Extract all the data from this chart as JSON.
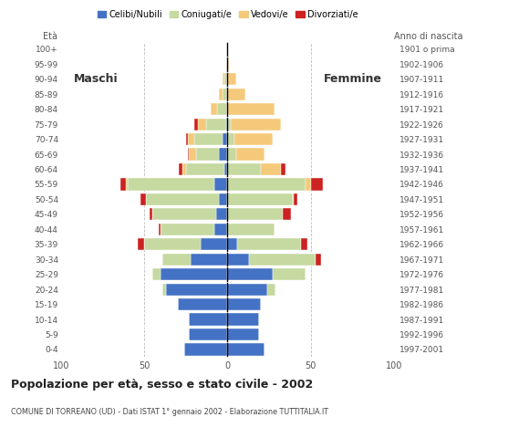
{
  "age_groups": [
    "0-4",
    "5-9",
    "10-14",
    "15-19",
    "20-24",
    "25-29",
    "30-34",
    "35-39",
    "40-44",
    "45-49",
    "50-54",
    "55-59",
    "60-64",
    "65-69",
    "70-74",
    "75-79",
    "80-84",
    "85-89",
    "90-94",
    "95-99",
    "100+"
  ],
  "birth_years": [
    "1997-2001",
    "1992-1996",
    "1987-1991",
    "1982-1986",
    "1977-1981",
    "1972-1976",
    "1967-1971",
    "1962-1966",
    "1957-1961",
    "1952-1956",
    "1947-1951",
    "1942-1946",
    "1937-1941",
    "1932-1936",
    "1927-1931",
    "1922-1926",
    "1917-1921",
    "1912-1916",
    "1907-1911",
    "1902-1906",
    "1901 o prima"
  ],
  "male_celibi": [
    26,
    23,
    23,
    30,
    37,
    40,
    22,
    16,
    8,
    7,
    5,
    8,
    2,
    5,
    3,
    1,
    0,
    0,
    0,
    0,
    0
  ],
  "male_coniugati": [
    0,
    0,
    0,
    0,
    2,
    5,
    17,
    34,
    32,
    38,
    44,
    52,
    23,
    14,
    17,
    12,
    6,
    3,
    2,
    0,
    0
  ],
  "male_vedovi": [
    0,
    0,
    0,
    0,
    0,
    0,
    0,
    0,
    0,
    0,
    0,
    1,
    2,
    4,
    4,
    5,
    4,
    2,
    1,
    0,
    0
  ],
  "male_divorziati": [
    0,
    0,
    0,
    0,
    0,
    0,
    0,
    4,
    1,
    2,
    3,
    3,
    2,
    1,
    1,
    2,
    0,
    0,
    0,
    0,
    0
  ],
  "female_nubili": [
    22,
    19,
    19,
    20,
    24,
    27,
    13,
    6,
    0,
    0,
    0,
    0,
    0,
    0,
    0,
    0,
    0,
    0,
    0,
    0,
    0
  ],
  "female_coniugate": [
    0,
    0,
    0,
    0,
    5,
    20,
    40,
    38,
    28,
    33,
    39,
    47,
    20,
    5,
    4,
    2,
    0,
    0,
    0,
    0,
    0
  ],
  "female_vedove": [
    0,
    0,
    0,
    0,
    0,
    0,
    0,
    0,
    0,
    0,
    1,
    3,
    12,
    17,
    23,
    30,
    28,
    11,
    5,
    1,
    0
  ],
  "female_divorziate": [
    0,
    0,
    0,
    0,
    0,
    0,
    3,
    4,
    0,
    5,
    2,
    7,
    3,
    0,
    0,
    0,
    0,
    0,
    0,
    0,
    0
  ],
  "color_celibi": "#4472c4",
  "color_coniugati": "#c5d9a0",
  "color_vedovi": "#f5c97a",
  "color_divorziati": "#cc2222",
  "xlim": 100,
  "title": "Popolazione per età, sesso e stato civile - 2002",
  "subtitle": "COMUNE DI TORREANO (UD) - Dati ISTAT 1° gennaio 2002 - Elaborazione TUTTITALIA.IT",
  "legend_labels": [
    "Celibi/Nubili",
    "Coniugati/e",
    "Vedovi/e",
    "Divorziati/e"
  ],
  "birth_year_label": "Anno di nascita",
  "age_label": "Età",
  "maschi_label": "Maschi",
  "femmine_label": "Femmine"
}
